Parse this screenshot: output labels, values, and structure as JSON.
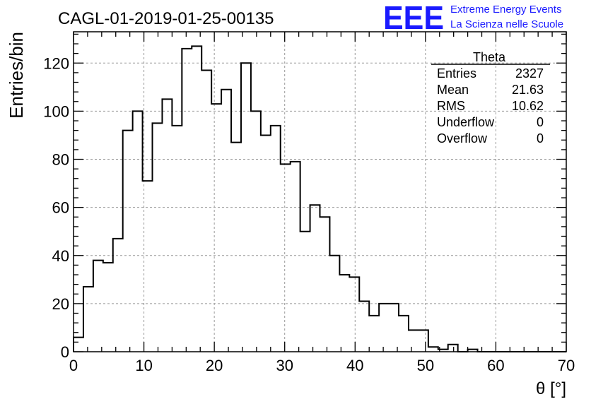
{
  "page": {
    "title": "CAGL-01-2019-01-25-00135",
    "logo": {
      "mark": "EEE",
      "line1": "Extreme Energy Events",
      "line2": "La Scienza nelle Scuole",
      "color": "#1a1aff"
    }
  },
  "stats": {
    "title": "Theta",
    "rows": [
      {
        "label": "Entries",
        "value": "2327"
      },
      {
        "label": "Mean",
        "value": "21.63"
      },
      {
        "label": "RMS",
        "value": "10.62"
      },
      {
        "label": "Underflow",
        "value": "0"
      },
      {
        "label": "Overflow",
        "value": "0"
      }
    ]
  },
  "chart_data": {
    "type": "histogram",
    "title": "CAGL-01-2019-01-25-00135",
    "xlabel": "θ [°]",
    "ylabel": "Entries/bin",
    "xlim": [
      0,
      70
    ],
    "ylim": [
      0,
      133
    ],
    "bin_width": 1.4,
    "x_ticks": [
      0,
      10,
      20,
      30,
      40,
      50,
      60,
      70
    ],
    "y_ticks": [
      0,
      20,
      40,
      60,
      80,
      100,
      120
    ],
    "grid": true,
    "values": [
      6,
      27,
      38,
      37,
      47,
      92,
      100,
      71,
      95,
      105,
      94,
      126,
      127,
      117,
      103,
      109,
      87,
      120,
      100,
      90,
      94,
      78,
      79,
      50,
      61,
      56,
      40,
      32,
      31,
      21,
      15,
      20,
      20,
      15,
      9,
      9,
      2,
      1,
      3,
      0,
      1,
      0,
      0,
      0,
      0,
      0,
      0,
      0,
      0,
      0
    ],
    "line_color": "#000000"
  }
}
